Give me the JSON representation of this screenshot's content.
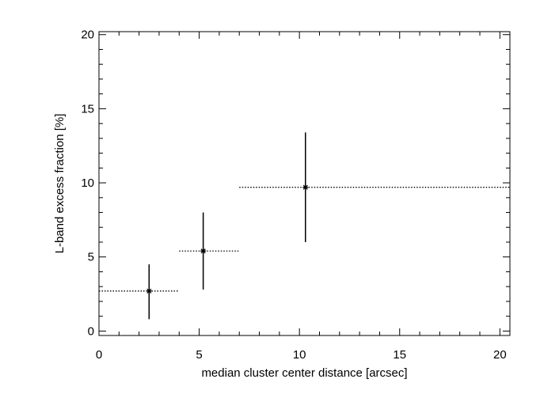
{
  "chart_data": {
    "type": "scatter",
    "title": "",
    "xlabel": "median cluster center distance [arcsec]",
    "ylabel": "L-band excess fraction [%]",
    "xlim": [
      0,
      20.5
    ],
    "ylim": [
      -0.3,
      20.2
    ],
    "x_ticks": [
      0,
      5,
      10,
      15,
      20
    ],
    "y_ticks": [
      0,
      5,
      10,
      15,
      20
    ],
    "x_minor_step": 1,
    "y_minor_step": 1,
    "grid": false,
    "marker": "asterisk",
    "colors": {
      "foreground": "#000000",
      "background": "#ffffff"
    },
    "points": [
      {
        "x": 2.5,
        "y": 2.7,
        "x_range": [
          0.0,
          4.0
        ],
        "y_err": [
          0.8,
          4.5
        ]
      },
      {
        "x": 5.2,
        "y": 5.4,
        "x_range": [
          4.0,
          7.0
        ],
        "y_err": [
          2.8,
          8.0
        ]
      },
      {
        "x": 10.3,
        "y": 9.7,
        "x_range": [
          7.0,
          20.5
        ],
        "y_err": [
          6.0,
          13.4
        ]
      }
    ]
  }
}
